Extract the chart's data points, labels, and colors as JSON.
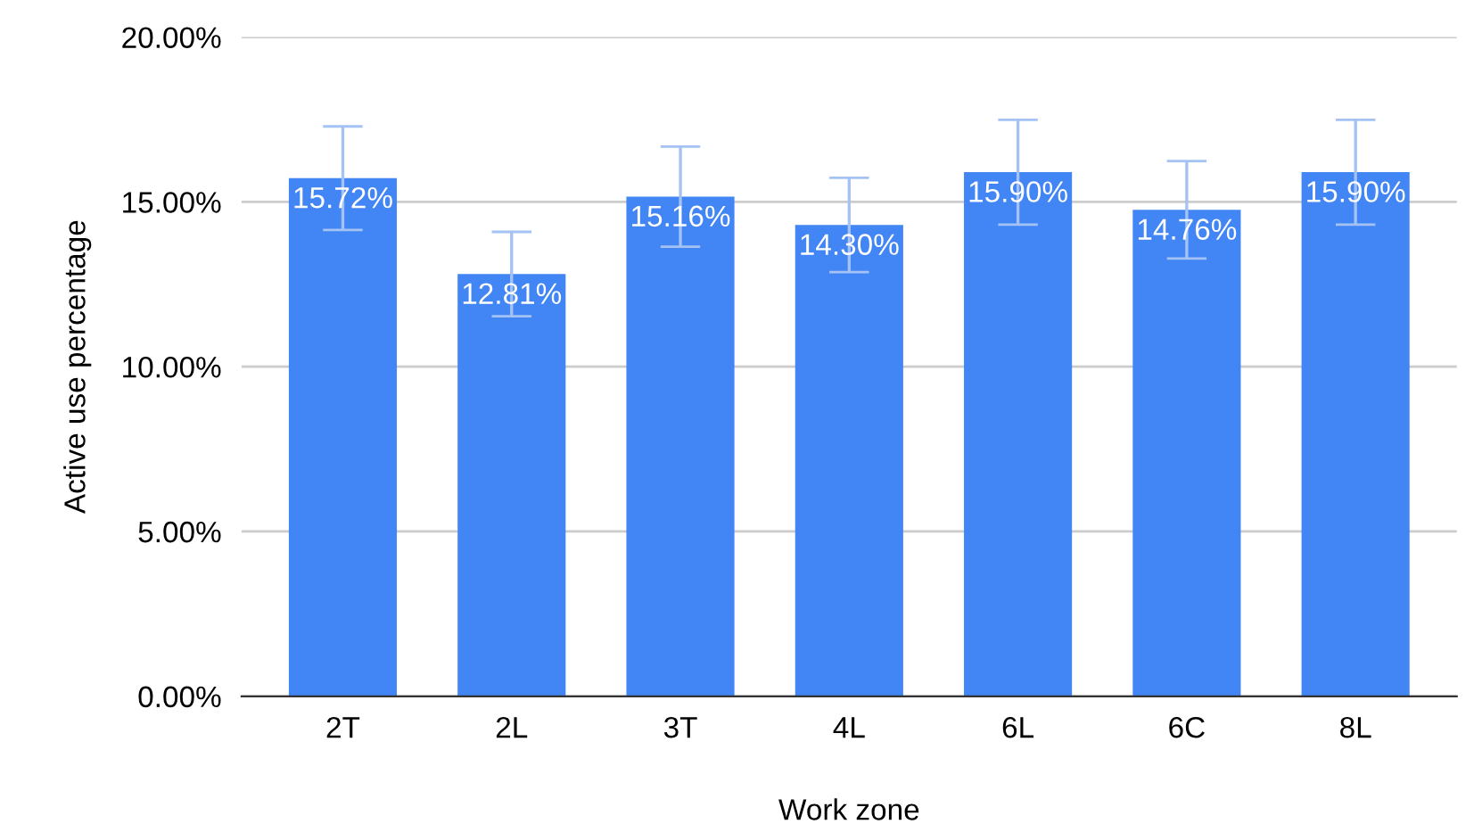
{
  "chart_data": {
    "type": "bar",
    "xlabel": "Work zone",
    "ylabel": "Active use percentage",
    "categories": [
      "2T",
      "2L",
      "3T",
      "4L",
      "6L",
      "6C",
      "8L"
    ],
    "values": [
      15.72,
      12.81,
      15.16,
      14.3,
      15.9,
      14.76,
      15.9
    ],
    "value_labels": [
      "15.72%",
      "12.81%",
      "15.16%",
      "14.30%",
      "15.90%",
      "14.76%",
      "15.90%"
    ],
    "errors": [
      1.57,
      1.28,
      1.52,
      1.43,
      1.59,
      1.48,
      1.59
    ],
    "color": "#4285f4",
    "ylim": [
      0,
      20
    ],
    "yticks": [
      {
        "value": 0,
        "label": "0.00%"
      },
      {
        "value": 5,
        "label": "5.00%"
      },
      {
        "value": 10,
        "label": "10.00%"
      },
      {
        "value": 15,
        "label": "15.00%"
      },
      {
        "value": 20,
        "label": "20.00%"
      }
    ],
    "grid": "y",
    "legend": false
  }
}
